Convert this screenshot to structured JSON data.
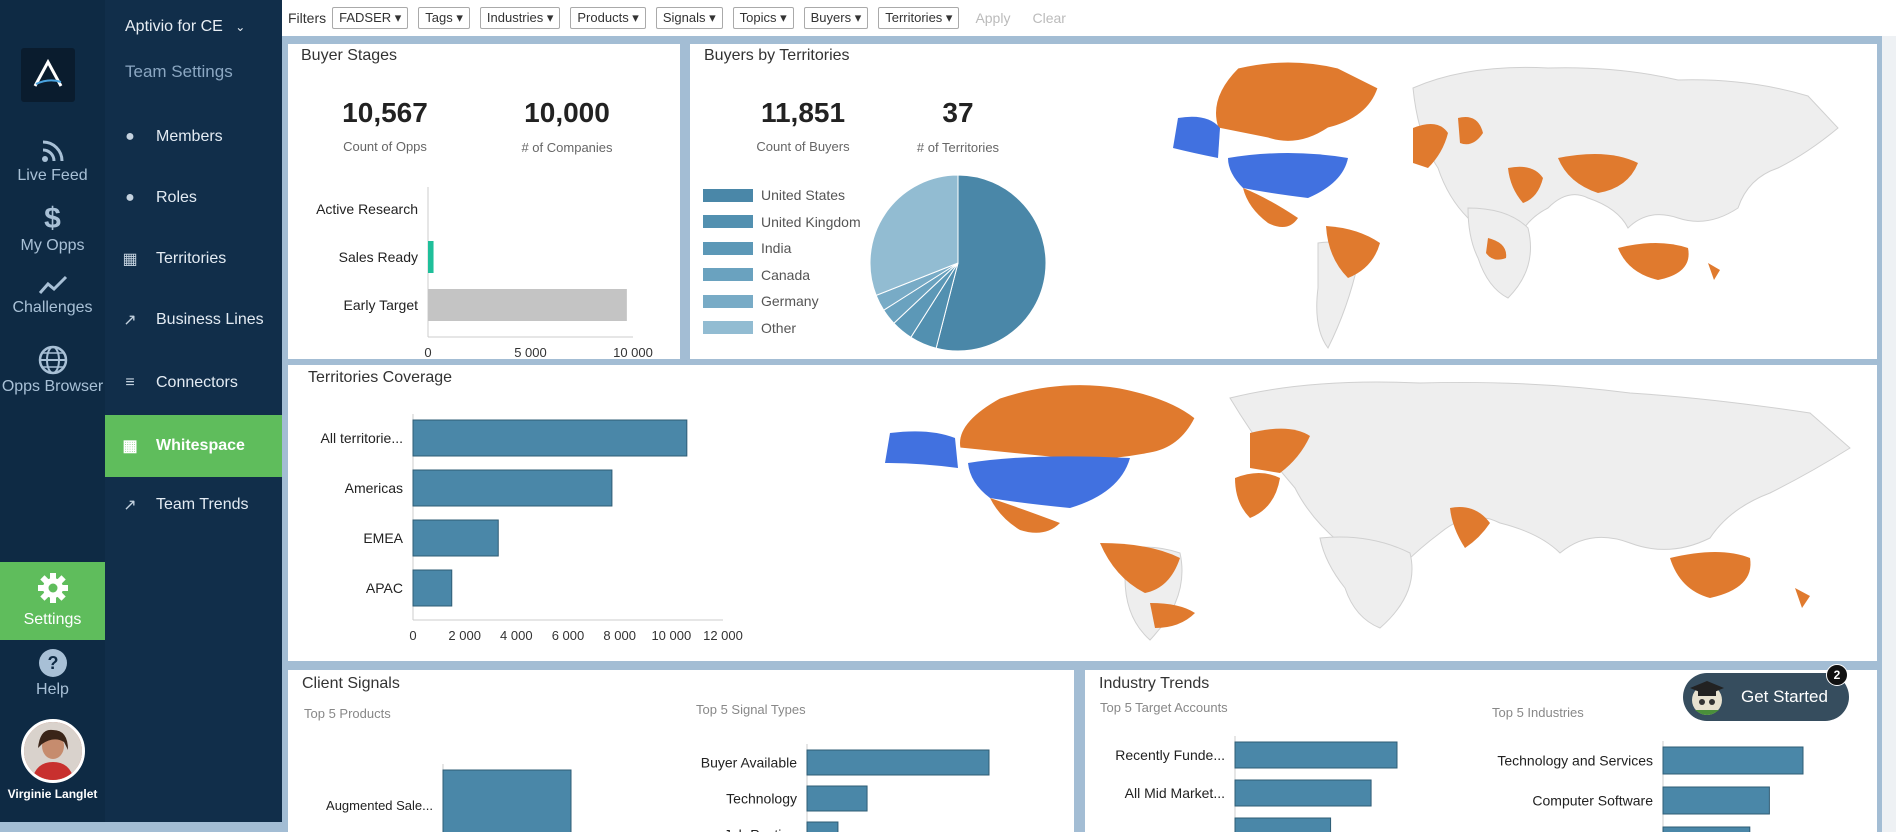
{
  "rail": {
    "items": [
      {
        "label": "Live Feed",
        "icon": "rss-icon"
      },
      {
        "label": "My Opps",
        "icon": "dollar-icon"
      },
      {
        "label": "Challenges",
        "icon": "trend-icon"
      },
      {
        "label": "Opps Browser",
        "icon": "globe-icon"
      }
    ],
    "settings_label": "Settings",
    "help_label": "Help",
    "user_name": "Virginie Langlet"
  },
  "panel": {
    "team": "Aptivio for CE",
    "section_title": "Team Settings",
    "items": [
      {
        "label": "Members"
      },
      {
        "label": "Roles"
      },
      {
        "label": "Territories"
      },
      {
        "label": "Business Lines"
      },
      {
        "label": "Connectors"
      },
      {
        "label": "Whitespace"
      },
      {
        "label": "Team Trends"
      }
    ]
  },
  "filters": {
    "label": "Filters",
    "buttons": [
      "FADSER ▾",
      "Tags ▾",
      "Industries ▾",
      "Products ▾",
      "Signals ▾",
      "Topics ▾",
      "Buyers ▾",
      "Territories ▾"
    ],
    "apply": "Apply",
    "clear": "Clear"
  },
  "buyer_stages": {
    "title": "Buyer Stages",
    "kpi1_value": "10,567",
    "kpi1_label": "Count of Opps",
    "kpi2_value": "10,000",
    "kpi2_label": "# of Companies"
  },
  "buyers_territories": {
    "title": "Buyers by Territories",
    "kpi1_value": "11,851",
    "kpi1_label": "Count of Buyers",
    "kpi2_value": "37",
    "kpi2_label": "# of Territories"
  },
  "territories_coverage": {
    "title": "Territories Coverage"
  },
  "client_signals": {
    "title": "Client Signals",
    "sub1": "Top 5 Products",
    "sub2": "Top 5 Signal Types"
  },
  "industry_trends": {
    "title": "Industry Trends",
    "sub1": "Top 5 Target Accounts",
    "sub2": "Top 5 Industries"
  },
  "get_started": {
    "label": "Get Started",
    "badge": "2"
  },
  "colors": {
    "accent_green": "#5fbd5c",
    "bar_blue": "#4a87a8",
    "map_orange": "#e07a2e",
    "map_blue": "#4171e0"
  },
  "chart_data": [
    {
      "id": "buyer-stages",
      "type": "bar",
      "orientation": "horizontal",
      "categories": [
        "Active Research",
        "Sales Ready",
        "Early Target"
      ],
      "values": [
        0,
        270,
        9700
      ],
      "colors": [
        "#4a87a8",
        "#1fbf9a",
        "#c4c4c4"
      ],
      "xlim": [
        0,
        10000
      ],
      "xticks": [
        "0",
        "5 000",
        "10 000"
      ]
    },
    {
      "id": "buyers-pie",
      "type": "pie",
      "categories": [
        "United States",
        "United Kingdom",
        "India",
        "Canada",
        "Germany",
        "Other"
      ],
      "values": [
        54,
        5,
        4,
        3,
        3,
        31
      ],
      "colors": [
        "#4a87a8",
        "#5290b0",
        "#5c98b7",
        "#6aa2bf",
        "#78abc6",
        "#92bcd2"
      ]
    },
    {
      "id": "territories-coverage",
      "type": "bar",
      "orientation": "horizontal",
      "categories": [
        "All territorie...",
        "Americas",
        "EMEA",
        "APAC"
      ],
      "values": [
        10600,
        7700,
        3300,
        1500
      ],
      "xlim": [
        0,
        12000
      ],
      "xticks": [
        "0",
        "2 000",
        "4 000",
        "6 000",
        "8 000",
        "10 000",
        "12 000"
      ]
    },
    {
      "id": "top-products",
      "type": "bar",
      "orientation": "horizontal",
      "categories": [
        "Augmented Sale..."
      ],
      "values": [
        1
      ]
    },
    {
      "id": "top-signal-types",
      "type": "bar",
      "orientation": "horizontal",
      "categories": [
        "Buyer Available",
        "Technology",
        "Job Posting"
      ],
      "values": [
        100,
        33,
        17
      ]
    },
    {
      "id": "top-target-accounts",
      "type": "bar",
      "orientation": "horizontal",
      "categories": [
        "Recently Funde...",
        "All Mid Market...",
        ""
      ],
      "values": [
        100,
        84,
        59
      ]
    },
    {
      "id": "top-industries",
      "type": "bar",
      "orientation": "horizontal",
      "categories": [
        "Technology and Services",
        "Computer Software",
        ""
      ],
      "values": [
        100,
        76,
        62
      ]
    }
  ]
}
